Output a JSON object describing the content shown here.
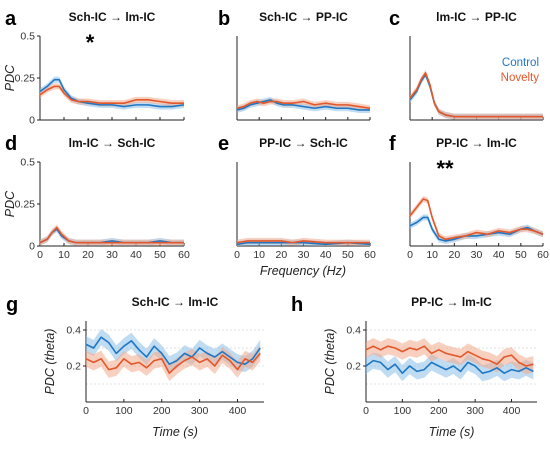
{
  "colors": {
    "control": "#1f77c4",
    "novelty": "#e2582b",
    "control_band": "#8cc0e8",
    "novelty_band": "#f2a98c"
  },
  "legend": {
    "control": "Control",
    "novelty": "Novelty"
  },
  "chart_data": [
    {
      "id": "a",
      "panel_label": "a",
      "type": "line",
      "title": "Sch-IC → lm-IC",
      "ylabel": "PDC",
      "xlabel": "",
      "xlim": [
        0,
        60
      ],
      "ylim": [
        0,
        0.5
      ],
      "xticks": [],
      "yticks": [
        0,
        0.25,
        0.5
      ],
      "ytick_labels": [
        "0",
        "0.25",
        "0.5"
      ],
      "annotation": "*",
      "series": [
        {
          "name": "Control",
          "x": [
            0,
            3,
            6,
            8,
            10,
            13,
            16,
            20,
            25,
            30,
            35,
            40,
            45,
            50,
            55,
            60
          ],
          "y": [
            0.17,
            0.2,
            0.24,
            0.24,
            0.18,
            0.13,
            0.11,
            0.1,
            0.09,
            0.09,
            0.08,
            0.09,
            0.09,
            0.08,
            0.08,
            0.09
          ]
        },
        {
          "name": "Novelty",
          "x": [
            0,
            3,
            6,
            8,
            10,
            13,
            16,
            20,
            25,
            30,
            35,
            40,
            45,
            50,
            55,
            60
          ],
          "y": [
            0.15,
            0.18,
            0.2,
            0.2,
            0.16,
            0.12,
            0.11,
            0.11,
            0.1,
            0.1,
            0.1,
            0.12,
            0.12,
            0.11,
            0.1,
            0.1
          ]
        }
      ]
    },
    {
      "id": "b",
      "panel_label": "b",
      "type": "line",
      "title": "Sch-IC → PP-IC",
      "ylabel": "",
      "xlabel": "",
      "xlim": [
        0,
        60
      ],
      "ylim": [
        0,
        0.5
      ],
      "xticks": [],
      "yticks": [],
      "series": [
        {
          "name": "Control",
          "x": [
            0,
            3,
            6,
            9,
            12,
            15,
            18,
            21,
            25,
            30,
            35,
            40,
            45,
            50,
            55,
            60
          ],
          "y": [
            0.06,
            0.07,
            0.09,
            0.1,
            0.11,
            0.12,
            0.1,
            0.09,
            0.09,
            0.08,
            0.07,
            0.08,
            0.07,
            0.07,
            0.06,
            0.06
          ]
        },
        {
          "name": "Novelty",
          "x": [
            0,
            3,
            6,
            9,
            12,
            15,
            18,
            21,
            25,
            30,
            35,
            40,
            45,
            50,
            55,
            60
          ],
          "y": [
            0.07,
            0.08,
            0.1,
            0.11,
            0.1,
            0.11,
            0.11,
            0.1,
            0.1,
            0.11,
            0.09,
            0.1,
            0.09,
            0.09,
            0.08,
            0.07
          ]
        }
      ]
    },
    {
      "id": "c",
      "panel_label": "c",
      "type": "line",
      "title": "lm-IC → PP-IC",
      "ylabel": "",
      "xlabel": "",
      "xlim": [
        0,
        60
      ],
      "ylim": [
        0,
        0.5
      ],
      "xticks": [],
      "yticks": [],
      "show_legend": true,
      "legend_position": "top-right",
      "series": [
        {
          "name": "Control",
          "x": [
            0,
            3,
            5,
            7,
            9,
            11,
            13,
            16,
            20,
            25,
            30,
            40,
            50,
            60
          ],
          "y": [
            0.12,
            0.17,
            0.23,
            0.27,
            0.2,
            0.1,
            0.05,
            0.03,
            0.02,
            0.02,
            0.02,
            0.02,
            0.02,
            0.02
          ]
        },
        {
          "name": "Novelty",
          "x": [
            0,
            3,
            5,
            7,
            9,
            11,
            13,
            16,
            20,
            25,
            30,
            40,
            50,
            60
          ],
          "y": [
            0.13,
            0.18,
            0.24,
            0.28,
            0.21,
            0.1,
            0.05,
            0.03,
            0.02,
            0.02,
            0.02,
            0.02,
            0.02,
            0.02
          ]
        }
      ]
    },
    {
      "id": "d",
      "panel_label": "d",
      "type": "line",
      "title": "lm-IC → Sch-IC",
      "ylabel": "PDC",
      "xlabel": "",
      "xlim": [
        0,
        60
      ],
      "ylim": [
        0,
        0.5
      ],
      "xticks": [],
      "yticks": [
        0,
        0.25,
        0.5
      ],
      "ytick_labels": [
        "0",
        "0.25",
        "0.5"
      ],
      "series": [
        {
          "name": "Control",
          "x": [
            0,
            3,
            5,
            7,
            9,
            12,
            15,
            20,
            25,
            30,
            35,
            40,
            45,
            50,
            55,
            60
          ],
          "y": [
            0.02,
            0.04,
            0.08,
            0.1,
            0.06,
            0.03,
            0.02,
            0.02,
            0.02,
            0.03,
            0.02,
            0.02,
            0.02,
            0.03,
            0.02,
            0.02
          ]
        },
        {
          "name": "Novelty",
          "x": [
            0,
            3,
            5,
            7,
            9,
            12,
            15,
            20,
            25,
            30,
            35,
            40,
            45,
            50,
            55,
            60
          ],
          "y": [
            0.02,
            0.04,
            0.08,
            0.11,
            0.07,
            0.03,
            0.02,
            0.02,
            0.02,
            0.02,
            0.02,
            0.02,
            0.02,
            0.02,
            0.02,
            0.02
          ]
        }
      ]
    },
    {
      "id": "e",
      "panel_label": "e",
      "type": "line",
      "title": "PP-IC → Sch-IC",
      "ylabel": "",
      "xlabel": "",
      "xlim": [
        0,
        60
      ],
      "ylim": [
        0,
        0.5
      ],
      "xticks": [],
      "yticks": [],
      "series": [
        {
          "name": "Control",
          "x": [
            0,
            5,
            10,
            15,
            20,
            25,
            30,
            40,
            50,
            60
          ],
          "y": [
            0.01,
            0.02,
            0.02,
            0.02,
            0.02,
            0.02,
            0.02,
            0.01,
            0.02,
            0.01
          ]
        },
        {
          "name": "Novelty",
          "x": [
            0,
            5,
            10,
            15,
            20,
            25,
            30,
            40,
            50,
            60
          ],
          "y": [
            0.02,
            0.03,
            0.03,
            0.03,
            0.03,
            0.02,
            0.03,
            0.02,
            0.02,
            0.02
          ]
        }
      ]
    },
    {
      "id": "f",
      "panel_label": "f",
      "type": "line",
      "title": "PP-IC → lm-IC",
      "ylabel": "",
      "xlabel": "",
      "xlim": [
        0,
        60
      ],
      "ylim": [
        0,
        0.5
      ],
      "xticks": [],
      "yticks": [],
      "annotation": "**",
      "series": [
        {
          "name": "Control",
          "x": [
            0,
            3,
            6,
            8,
            10,
            13,
            16,
            20,
            25,
            30,
            35,
            40,
            45,
            50,
            53,
            56,
            60
          ],
          "y": [
            0.12,
            0.14,
            0.17,
            0.17,
            0.1,
            0.04,
            0.03,
            0.04,
            0.06,
            0.06,
            0.07,
            0.08,
            0.07,
            0.1,
            0.11,
            0.09,
            0.07
          ]
        },
        {
          "name": "Novelty",
          "x": [
            0,
            3,
            6,
            8,
            10,
            13,
            16,
            20,
            25,
            30,
            35,
            40,
            45,
            50,
            53,
            56,
            60
          ],
          "y": [
            0.18,
            0.23,
            0.28,
            0.27,
            0.17,
            0.06,
            0.04,
            0.05,
            0.06,
            0.08,
            0.07,
            0.09,
            0.08,
            0.1,
            0.1,
            0.09,
            0.07
          ]
        }
      ]
    },
    {
      "id": "g",
      "panel_label": "g",
      "type": "line",
      "title": "Sch-IC → lm-IC",
      "ylabel": "PDC (theta)",
      "xlabel": "Time (s)",
      "xlim": [
        0,
        470
      ],
      "ylim": [
        0,
        0.45
      ],
      "xticks": [
        0,
        100,
        200,
        300,
        400
      ],
      "yticks": [
        0.2,
        0.4
      ],
      "ytick_labels": [
        "0.2",
        "0.4"
      ],
      "series": [
        {
          "name": "Control",
          "x": [
            0,
            20,
            40,
            60,
            80,
            100,
            120,
            140,
            160,
            180,
            200,
            220,
            240,
            260,
            280,
            300,
            320,
            340,
            360,
            380,
            400,
            420,
            440,
            460
          ],
          "y": [
            0.32,
            0.3,
            0.36,
            0.33,
            0.27,
            0.31,
            0.34,
            0.29,
            0.25,
            0.31,
            0.27,
            0.21,
            0.23,
            0.27,
            0.25,
            0.3,
            0.27,
            0.25,
            0.28,
            0.25,
            0.22,
            0.21,
            0.24,
            0.3
          ]
        },
        {
          "name": "Novelty",
          "x": [
            0,
            20,
            40,
            60,
            80,
            100,
            120,
            140,
            160,
            180,
            200,
            220,
            240,
            260,
            280,
            300,
            320,
            340,
            360,
            380,
            400,
            420,
            440,
            460
          ],
          "y": [
            0.24,
            0.22,
            0.24,
            0.18,
            0.19,
            0.24,
            0.21,
            0.22,
            0.19,
            0.23,
            0.24,
            0.16,
            0.2,
            0.23,
            0.25,
            0.22,
            0.24,
            0.2,
            0.26,
            0.23,
            0.18,
            0.24,
            0.22,
            0.27
          ]
        }
      ]
    },
    {
      "id": "h",
      "panel_label": "h",
      "type": "line",
      "title": "PP-IC → lm-IC",
      "ylabel": "PDC (theta)",
      "xlabel": "Time (s)",
      "xlim": [
        0,
        470
      ],
      "ylim": [
        0,
        0.45
      ],
      "xticks": [
        0,
        100,
        200,
        300,
        400
      ],
      "yticks": [
        0.2,
        0.4
      ],
      "ytick_labels": [
        "0.2",
        "0.4"
      ],
      "series": [
        {
          "name": "Control",
          "x": [
            0,
            20,
            40,
            60,
            80,
            100,
            120,
            140,
            160,
            180,
            200,
            220,
            240,
            260,
            280,
            300,
            320,
            340,
            360,
            380,
            400,
            420,
            440,
            460
          ],
          "y": [
            0.2,
            0.23,
            0.22,
            0.18,
            0.21,
            0.16,
            0.2,
            0.17,
            0.18,
            0.22,
            0.2,
            0.18,
            0.2,
            0.17,
            0.22,
            0.2,
            0.16,
            0.17,
            0.19,
            0.16,
            0.18,
            0.17,
            0.19,
            0.17
          ]
        },
        {
          "name": "Novelty",
          "x": [
            0,
            20,
            40,
            60,
            80,
            100,
            120,
            140,
            160,
            180,
            200,
            220,
            240,
            260,
            280,
            300,
            320,
            340,
            360,
            380,
            400,
            420,
            440,
            460
          ],
          "y": [
            0.29,
            0.31,
            0.29,
            0.31,
            0.3,
            0.28,
            0.3,
            0.29,
            0.31,
            0.27,
            0.29,
            0.27,
            0.26,
            0.25,
            0.28,
            0.26,
            0.24,
            0.23,
            0.21,
            0.25,
            0.26,
            0.22,
            0.2,
            0.21
          ]
        }
      ]
    }
  ],
  "shared_axes": {
    "top_rows_xticks": [
      0,
      10,
      20,
      30,
      40,
      50,
      60
    ],
    "top_rows_xlabel": "Frequency (Hz)"
  }
}
